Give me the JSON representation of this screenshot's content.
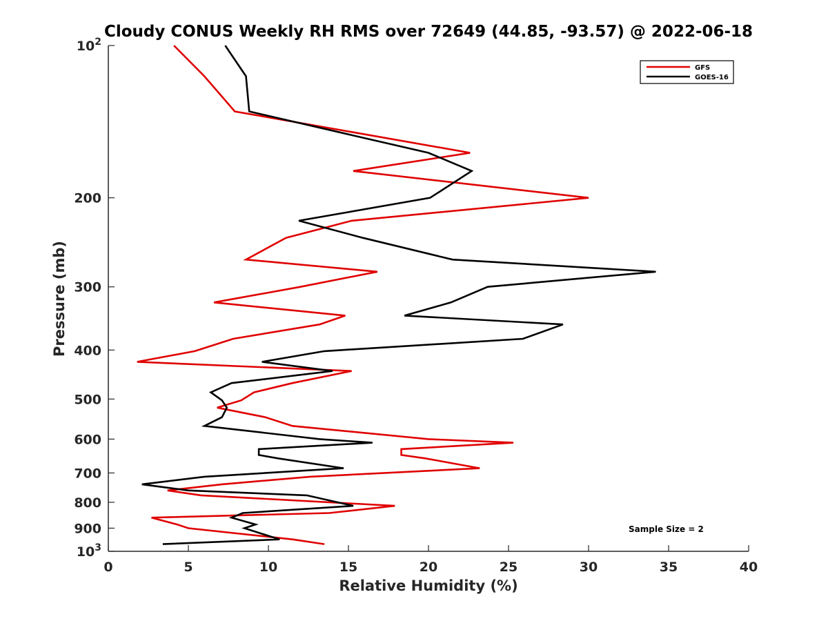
{
  "chart_data": {
    "type": "line",
    "title": "Cloudy CONUS Weekly RH RMS over 72649 (44.85, -93.57) @ 2022-06-18",
    "xlabel": "Relative Humidity (%)",
    "ylabel": "Pressure (mb)",
    "xlim": [
      0,
      40
    ],
    "ylim": [
      100,
      1000
    ],
    "y_scale": "log",
    "y_reversed": true,
    "x_ticks": [
      "0",
      "5",
      "10",
      "15",
      "20",
      "25",
      "30",
      "35",
      "40"
    ],
    "y_ticks": [
      {
        "value": 100,
        "base": "10",
        "exp": "2"
      },
      {
        "value": 200,
        "label": "200"
      },
      {
        "value": 300,
        "label": "300"
      },
      {
        "value": 400,
        "label": "400"
      },
      {
        "value": 500,
        "label": "500"
      },
      {
        "value": 600,
        "label": "600"
      },
      {
        "value": 700,
        "label": "700"
      },
      {
        "value": 800,
        "label": "800"
      },
      {
        "value": 900,
        "label": "900"
      },
      {
        "value": 1000,
        "base": "10",
        "exp": "3"
      }
    ],
    "grid": false,
    "legend_position": "top-right",
    "annotation": "Sample Size = 2",
    "series": [
      {
        "name": "GFS",
        "color": "#e00000",
        "points": [
          [
            4.1,
            100
          ],
          [
            6.0,
            115
          ],
          [
            7.9,
            135
          ],
          [
            22.6,
            163
          ],
          [
            15.3,
            177
          ],
          [
            30.0,
            200
          ],
          [
            15.2,
            222
          ],
          [
            11.1,
            240
          ],
          [
            8.6,
            265
          ],
          [
            16.8,
            280
          ],
          [
            12.0,
            300
          ],
          [
            6.6,
            322
          ],
          [
            14.8,
            342
          ],
          [
            13.2,
            356
          ],
          [
            7.8,
            380
          ],
          [
            5.4,
            402
          ],
          [
            1.8,
            422
          ],
          [
            15.2,
            440
          ],
          [
            11.5,
            465
          ],
          [
            9.1,
            485
          ],
          [
            8.3,
            503
          ],
          [
            6.8,
            520
          ],
          [
            9.8,
            543
          ],
          [
            11.5,
            565
          ],
          [
            20.0,
            600
          ],
          [
            25.3,
            610
          ],
          [
            18.3,
            628
          ],
          [
            18.3,
            645
          ],
          [
            19.8,
            655
          ],
          [
            23.2,
            685
          ],
          [
            12.6,
            712
          ],
          [
            7.1,
            737
          ],
          [
            3.7,
            758
          ],
          [
            5.8,
            775
          ],
          [
            17.9,
            813
          ],
          [
            13.8,
            840
          ],
          [
            2.7,
            858
          ],
          [
            4.3,
            885
          ],
          [
            5.0,
            900
          ],
          [
            11.5,
            947
          ],
          [
            13.5,
            968
          ]
        ]
      },
      {
        "name": "GOES-16",
        "color": "#000000",
        "points": [
          [
            7.3,
            100
          ],
          [
            8.6,
            115
          ],
          [
            8.8,
            135
          ],
          [
            20.0,
            163
          ],
          [
            22.7,
            177
          ],
          [
            20.1,
            200
          ],
          [
            11.9,
            222
          ],
          [
            15.9,
            240
          ],
          [
            21.5,
            265
          ],
          [
            34.2,
            280
          ],
          [
            23.7,
            300
          ],
          [
            21.4,
            322
          ],
          [
            18.5,
            342
          ],
          [
            28.4,
            356
          ],
          [
            25.9,
            380
          ],
          [
            13.5,
            402
          ],
          [
            9.6,
            422
          ],
          [
            14.0,
            440
          ],
          [
            7.7,
            465
          ],
          [
            6.4,
            485
          ],
          [
            7.1,
            503
          ],
          [
            7.4,
            520
          ],
          [
            7.1,
            543
          ],
          [
            6.0,
            565
          ],
          [
            13.2,
            600
          ],
          [
            16.5,
            610
          ],
          [
            9.4,
            628
          ],
          [
            9.4,
            645
          ],
          [
            10.6,
            655
          ],
          [
            14.7,
            685
          ],
          [
            6.0,
            712
          ],
          [
            2.1,
            737
          ],
          [
            5.0,
            758
          ],
          [
            12.4,
            775
          ],
          [
            15.3,
            813
          ],
          [
            8.4,
            840
          ],
          [
            7.7,
            858
          ],
          [
            9.2,
            885
          ],
          [
            8.5,
            900
          ],
          [
            10.7,
            947
          ],
          [
            3.4,
            968
          ]
        ]
      }
    ]
  }
}
